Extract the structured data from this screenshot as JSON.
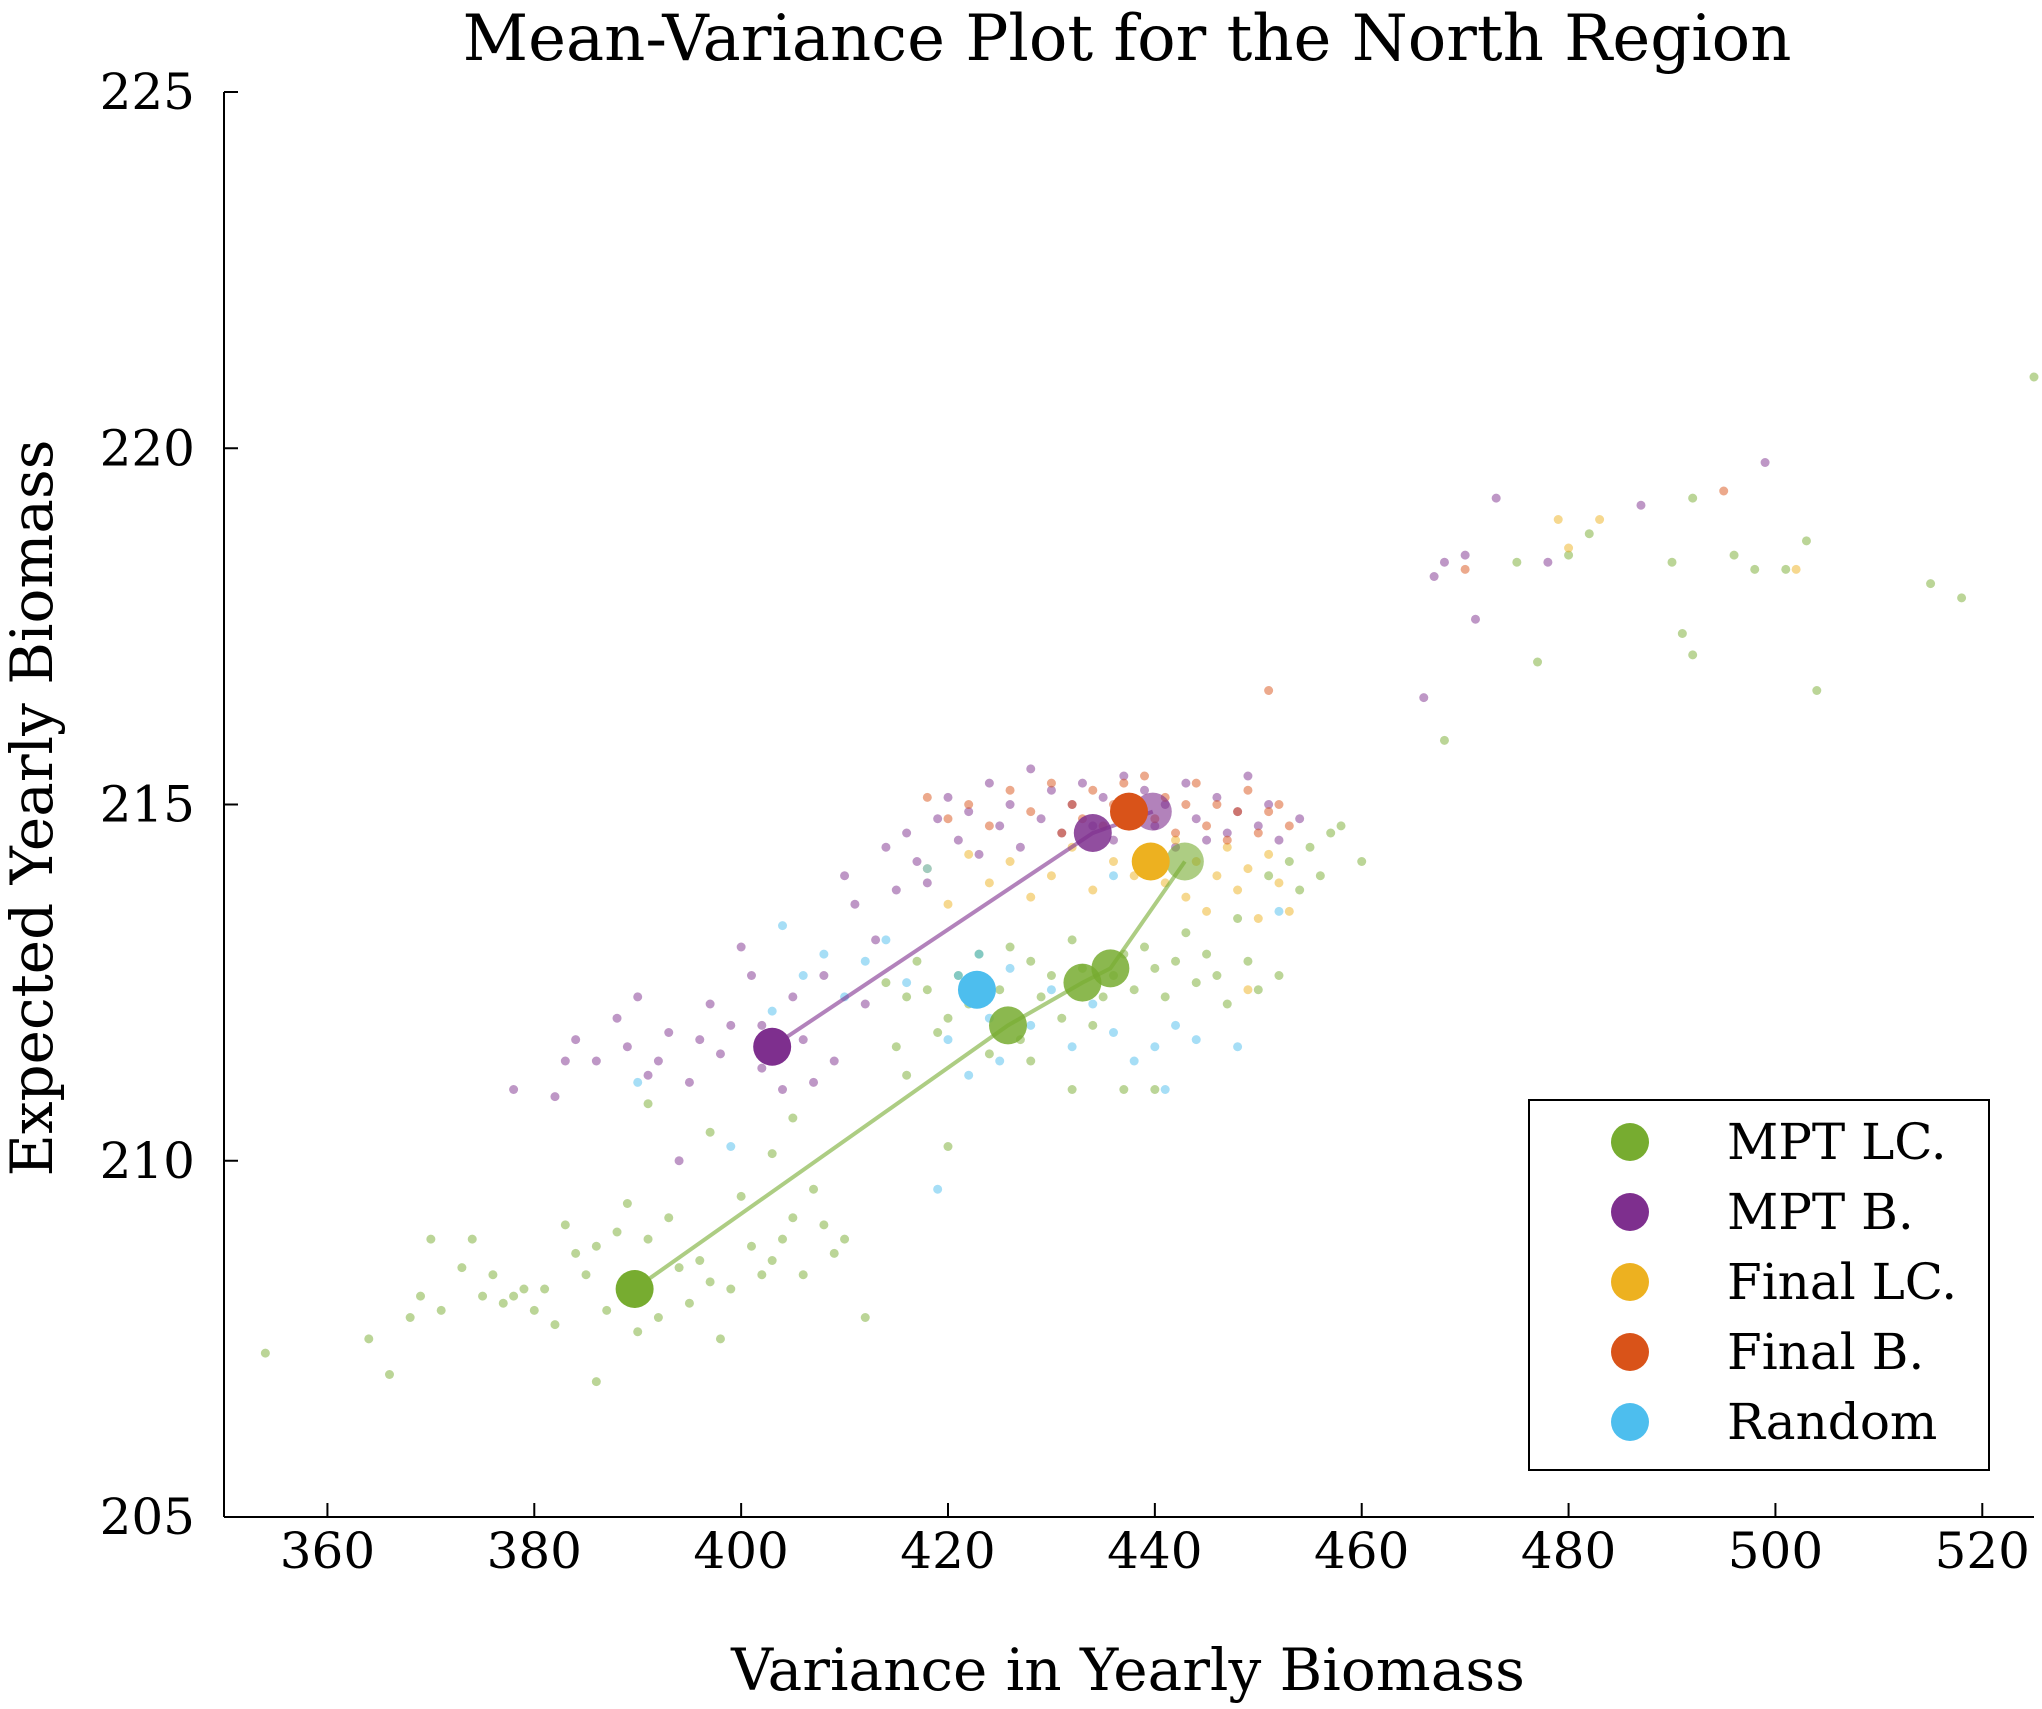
{
  "chart_data": {
    "type": "scatter",
    "title": "Mean-Variance Plot for the North Region",
    "xlabel": "Variance in Yearly Biomass",
    "ylabel": "Expected Yearly Biomass",
    "xlim": [
      350,
      525
    ],
    "ylim": [
      205,
      225
    ],
    "xticks": [
      360,
      380,
      400,
      420,
      440,
      460,
      480,
      500,
      520
    ],
    "yticks": [
      205,
      210,
      215,
      220,
      225
    ],
    "grid": false,
    "legend_position": "bottom-right",
    "series": [
      {
        "name": "MPT LC.",
        "color": "#77AC30",
        "frontier": [
          [
            389.7,
            208.2
          ],
          [
            425.8,
            211.9
          ],
          [
            433.0,
            212.5
          ],
          [
            435.7,
            212.7
          ],
          [
            442.9,
            214.2
          ]
        ],
        "cloud": [
          [
            354,
            207.3
          ],
          [
            364,
            207.5
          ],
          [
            366,
            207.0
          ],
          [
            368,
            207.8
          ],
          [
            369,
            208.1
          ],
          [
            370,
            208.9
          ],
          [
            371,
            207.9
          ],
          [
            373,
            208.5
          ],
          [
            374,
            208.9
          ],
          [
            375,
            208.1
          ],
          [
            376,
            208.4
          ],
          [
            377,
            208.0
          ],
          [
            378,
            208.1
          ],
          [
            379,
            208.2
          ],
          [
            380,
            207.9
          ],
          [
            381,
            208.2
          ],
          [
            382,
            207.7
          ],
          [
            383,
            209.1
          ],
          [
            384,
            208.7
          ],
          [
            385,
            208.4
          ],
          [
            386,
            208.8
          ],
          [
            387,
            207.9
          ],
          [
            388,
            209.0
          ],
          [
            389,
            209.4
          ],
          [
            390,
            207.6
          ],
          [
            391,
            208.9
          ],
          [
            392,
            207.8
          ],
          [
            393,
            209.2
          ],
          [
            394,
            208.5
          ],
          [
            395,
            208.0
          ],
          [
            396,
            208.6
          ],
          [
            397,
            208.3
          ],
          [
            398,
            207.5
          ],
          [
            399,
            208.2
          ],
          [
            400,
            209.5
          ],
          [
            401,
            208.8
          ],
          [
            402,
            208.4
          ],
          [
            403,
            208.6
          ],
          [
            404,
            208.9
          ],
          [
            405,
            209.2
          ],
          [
            406,
            208.4
          ],
          [
            407,
            209.6
          ],
          [
            408,
            209.1
          ],
          [
            409,
            208.7
          ],
          [
            410,
            208.9
          ],
          [
            412,
            207.8
          ],
          [
            414,
            212.5
          ],
          [
            415,
            211.6
          ],
          [
            416,
            212.3
          ],
          [
            417,
            212.8
          ],
          [
            418,
            212.4
          ],
          [
            419,
            211.8
          ],
          [
            420,
            212.0
          ],
          [
            421,
            212.6
          ],
          [
            422,
            212.2
          ],
          [
            423,
            212.9
          ],
          [
            424,
            211.5
          ],
          [
            425,
            212.4
          ],
          [
            426,
            213.0
          ],
          [
            427,
            211.7
          ],
          [
            428,
            212.8
          ],
          [
            429,
            212.3
          ],
          [
            430,
            212.6
          ],
          [
            431,
            212.0
          ],
          [
            432,
            213.1
          ],
          [
            433,
            212.7
          ],
          [
            434,
            211.9
          ],
          [
            435,
            212.3
          ],
          [
            436,
            212.6
          ],
          [
            437,
            212.9
          ],
          [
            438,
            212.4
          ],
          [
            439,
            213.0
          ],
          [
            440,
            212.7
          ],
          [
            441,
            212.3
          ],
          [
            442,
            212.8
          ],
          [
            443,
            213.2
          ],
          [
            444,
            212.5
          ],
          [
            445,
            212.9
          ],
          [
            446,
            212.6
          ],
          [
            447,
            212.2
          ],
          [
            448,
            213.4
          ],
          [
            449,
            212.8
          ],
          [
            450,
            212.4
          ],
          [
            451,
            214.0
          ],
          [
            452,
            212.6
          ],
          [
            453,
            214.2
          ],
          [
            454,
            213.8
          ],
          [
            455,
            214.4
          ],
          [
            456,
            214.0
          ],
          [
            457,
            214.6
          ],
          [
            458,
            214.7
          ],
          [
            460,
            214.2
          ],
          [
            468,
            215.9
          ],
          [
            475,
            218.4
          ],
          [
            477,
            217.0
          ],
          [
            480,
            218.5
          ],
          [
            482,
            218.8
          ],
          [
            490,
            218.4
          ],
          [
            491,
            217.4
          ],
          [
            492,
            217.1
          ],
          [
            492,
            219.3
          ],
          [
            496,
            218.5
          ],
          [
            498,
            218.3
          ],
          [
            501,
            218.3
          ],
          [
            503,
            218.7
          ],
          [
            504,
            216.6
          ],
          [
            515,
            218.1
          ],
          [
            518,
            217.9
          ],
          [
            525,
            221.0
          ],
          [
            386,
            206.9
          ],
          [
            391,
            210.8
          ],
          [
            397,
            210.4
          ],
          [
            403,
            210.1
          ],
          [
            405,
            210.6
          ],
          [
            416,
            211.2
          ],
          [
            420,
            210.2
          ],
          [
            428,
            211.4
          ],
          [
            432,
            211.0
          ],
          [
            437,
            211.0
          ],
          [
            440,
            211.0
          ]
        ]
      },
      {
        "name": "MPT B.",
        "color": "#7E2F8E",
        "frontier": [
          [
            403.0,
            211.6
          ],
          [
            434.0,
            214.6
          ],
          [
            439.8,
            214.9
          ]
        ],
        "cloud": [
          [
            378,
            211.0
          ],
          [
            382,
            210.9
          ],
          [
            383,
            211.4
          ],
          [
            384,
            211.7
          ],
          [
            386,
            211.4
          ],
          [
            388,
            212.0
          ],
          [
            389,
            211.6
          ],
          [
            390,
            212.3
          ],
          [
            391,
            211.2
          ],
          [
            392,
            211.4
          ],
          [
            393,
            211.8
          ],
          [
            394,
            210.0
          ],
          [
            395,
            211.1
          ],
          [
            396,
            211.7
          ],
          [
            397,
            212.2
          ],
          [
            398,
            211.5
          ],
          [
            399,
            211.9
          ],
          [
            400,
            213.0
          ],
          [
            401,
            212.6
          ],
          [
            402,
            211.3
          ],
          [
            404,
            211.0
          ],
          [
            405,
            212.3
          ],
          [
            406,
            211.7
          ],
          [
            407,
            211.1
          ],
          [
            408,
            212.6
          ],
          [
            409,
            211.4
          ],
          [
            410,
            214.0
          ],
          [
            411,
            213.6
          ],
          [
            412,
            212.2
          ],
          [
            413,
            213.1
          ],
          [
            414,
            214.4
          ],
          [
            415,
            213.8
          ],
          [
            416,
            214.6
          ],
          [
            417,
            214.2
          ],
          [
            418,
            213.9
          ],
          [
            419,
            214.8
          ],
          [
            420,
            215.1
          ],
          [
            421,
            214.5
          ],
          [
            422,
            214.9
          ],
          [
            423,
            214.3
          ],
          [
            424,
            215.3
          ],
          [
            425,
            214.7
          ],
          [
            426,
            215.0
          ],
          [
            427,
            214.4
          ],
          [
            428,
            215.5
          ],
          [
            429,
            214.8
          ],
          [
            430,
            215.2
          ],
          [
            431,
            214.6
          ],
          [
            432,
            215.0
          ],
          [
            433,
            215.3
          ],
          [
            434,
            214.7
          ],
          [
            435,
            215.1
          ],
          [
            436,
            214.5
          ],
          [
            437,
            215.4
          ],
          [
            438,
            214.9
          ],
          [
            439,
            215.2
          ],
          [
            440,
            214.7
          ],
          [
            441,
            215.0
          ],
          [
            442,
            214.4
          ],
          [
            443,
            215.3
          ],
          [
            444,
            214.8
          ],
          [
            445,
            214.5
          ],
          [
            446,
            215.1
          ],
          [
            447,
            214.6
          ],
          [
            448,
            214.9
          ],
          [
            449,
            215.4
          ],
          [
            450,
            214.7
          ],
          [
            451,
            215.0
          ],
          [
            452,
            214.5
          ],
          [
            454,
            214.8
          ],
          [
            466,
            216.5
          ],
          [
            467,
            218.2
          ],
          [
            468,
            218.4
          ],
          [
            470,
            218.5
          ],
          [
            471,
            217.6
          ],
          [
            473,
            219.3
          ],
          [
            478,
            218.4
          ],
          [
            487,
            219.2
          ],
          [
            499,
            219.8
          ],
          [
            402,
            211.9
          ]
        ]
      },
      {
        "name": "Final LC.",
        "color": "#EDB120",
        "frontier": [
          [
            439.6,
            214.2
          ]
        ],
        "cloud": [
          [
            418,
            214.1
          ],
          [
            420,
            213.6
          ],
          [
            422,
            214.3
          ],
          [
            424,
            213.9
          ],
          [
            426,
            214.2
          ],
          [
            428,
            213.7
          ],
          [
            430,
            214.0
          ],
          [
            432,
            214.4
          ],
          [
            434,
            213.8
          ],
          [
            436,
            214.2
          ],
          [
            438,
            214.0
          ],
          [
            440,
            214.3
          ],
          [
            441,
            213.9
          ],
          [
            442,
            214.5
          ],
          [
            443,
            213.7
          ],
          [
            444,
            214.2
          ],
          [
            445,
            213.5
          ],
          [
            446,
            214.0
          ],
          [
            447,
            214.4
          ],
          [
            448,
            213.8
          ],
          [
            449,
            214.1
          ],
          [
            450,
            213.4
          ],
          [
            451,
            214.3
          ],
          [
            452,
            213.9
          ],
          [
            453,
            213.5
          ],
          [
            449,
            212.4
          ],
          [
            479,
            219.0
          ],
          [
            483,
            219.0
          ],
          [
            480,
            218.6
          ],
          [
            502,
            218.3
          ]
        ]
      },
      {
        "name": "Final B.",
        "color": "#D95319",
        "frontier": [
          [
            437.5,
            214.9
          ]
        ],
        "cloud": [
          [
            418,
            215.1
          ],
          [
            420,
            214.8
          ],
          [
            422,
            215.0
          ],
          [
            424,
            214.7
          ],
          [
            426,
            215.2
          ],
          [
            428,
            214.9
          ],
          [
            430,
            215.3
          ],
          [
            431,
            214.6
          ],
          [
            432,
            215.0
          ],
          [
            433,
            214.8
          ],
          [
            434,
            215.2
          ],
          [
            435,
            214.7
          ],
          [
            436,
            215.0
          ],
          [
            437,
            215.3
          ],
          [
            438,
            214.9
          ],
          [
            439,
            215.4
          ],
          [
            440,
            214.8
          ],
          [
            441,
            215.1
          ],
          [
            442,
            214.6
          ],
          [
            443,
            215.0
          ],
          [
            444,
            215.3
          ],
          [
            445,
            214.7
          ],
          [
            446,
            215.0
          ],
          [
            447,
            214.5
          ],
          [
            448,
            214.9
          ],
          [
            449,
            215.2
          ],
          [
            450,
            214.6
          ],
          [
            451,
            214.9
          ],
          [
            452,
            215.0
          ],
          [
            453,
            214.7
          ],
          [
            451,
            216.6
          ],
          [
            470,
            218.3
          ],
          [
            495,
            219.4
          ]
        ]
      },
      {
        "name": "Random",
        "color": "#4DBEEE",
        "frontier": [
          [
            422.8,
            212.4
          ]
        ],
        "cloud": [
          [
            390,
            211.1
          ],
          [
            399,
            210.2
          ],
          [
            403,
            212.1
          ],
          [
            404,
            213.3
          ],
          [
            406,
            212.6
          ],
          [
            408,
            212.9
          ],
          [
            410,
            212.3
          ],
          [
            412,
            212.8
          ],
          [
            414,
            213.1
          ],
          [
            416,
            212.5
          ],
          [
            418,
            214.1
          ],
          [
            419,
            209.6
          ],
          [
            420,
            211.7
          ],
          [
            421,
            212.6
          ],
          [
            422,
            211.2
          ],
          [
            423,
            212.9
          ],
          [
            424,
            212.0
          ],
          [
            425,
            211.4
          ],
          [
            426,
            212.7
          ],
          [
            428,
            211.9
          ],
          [
            430,
            212.4
          ],
          [
            432,
            211.6
          ],
          [
            434,
            212.2
          ],
          [
            436,
            211.8
          ],
          [
            438,
            211.4
          ],
          [
            440,
            211.6
          ],
          [
            441,
            211.0
          ],
          [
            442,
            211.9
          ],
          [
            444,
            211.7
          ],
          [
            448,
            211.6
          ],
          [
            452,
            213.5
          ],
          [
            436,
            214.0
          ]
        ]
      }
    ]
  }
}
